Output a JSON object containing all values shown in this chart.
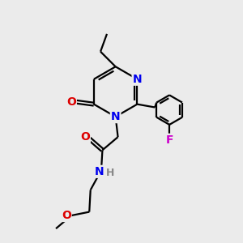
{
  "bg_color": "#ebebeb",
  "atom_colors": {
    "C": "#000000",
    "N": "#0000ee",
    "O": "#dd0000",
    "F": "#cc00cc",
    "H": "#888888"
  },
  "bond_color": "#000000",
  "bond_width": 1.6,
  "dbo": 0.055
}
